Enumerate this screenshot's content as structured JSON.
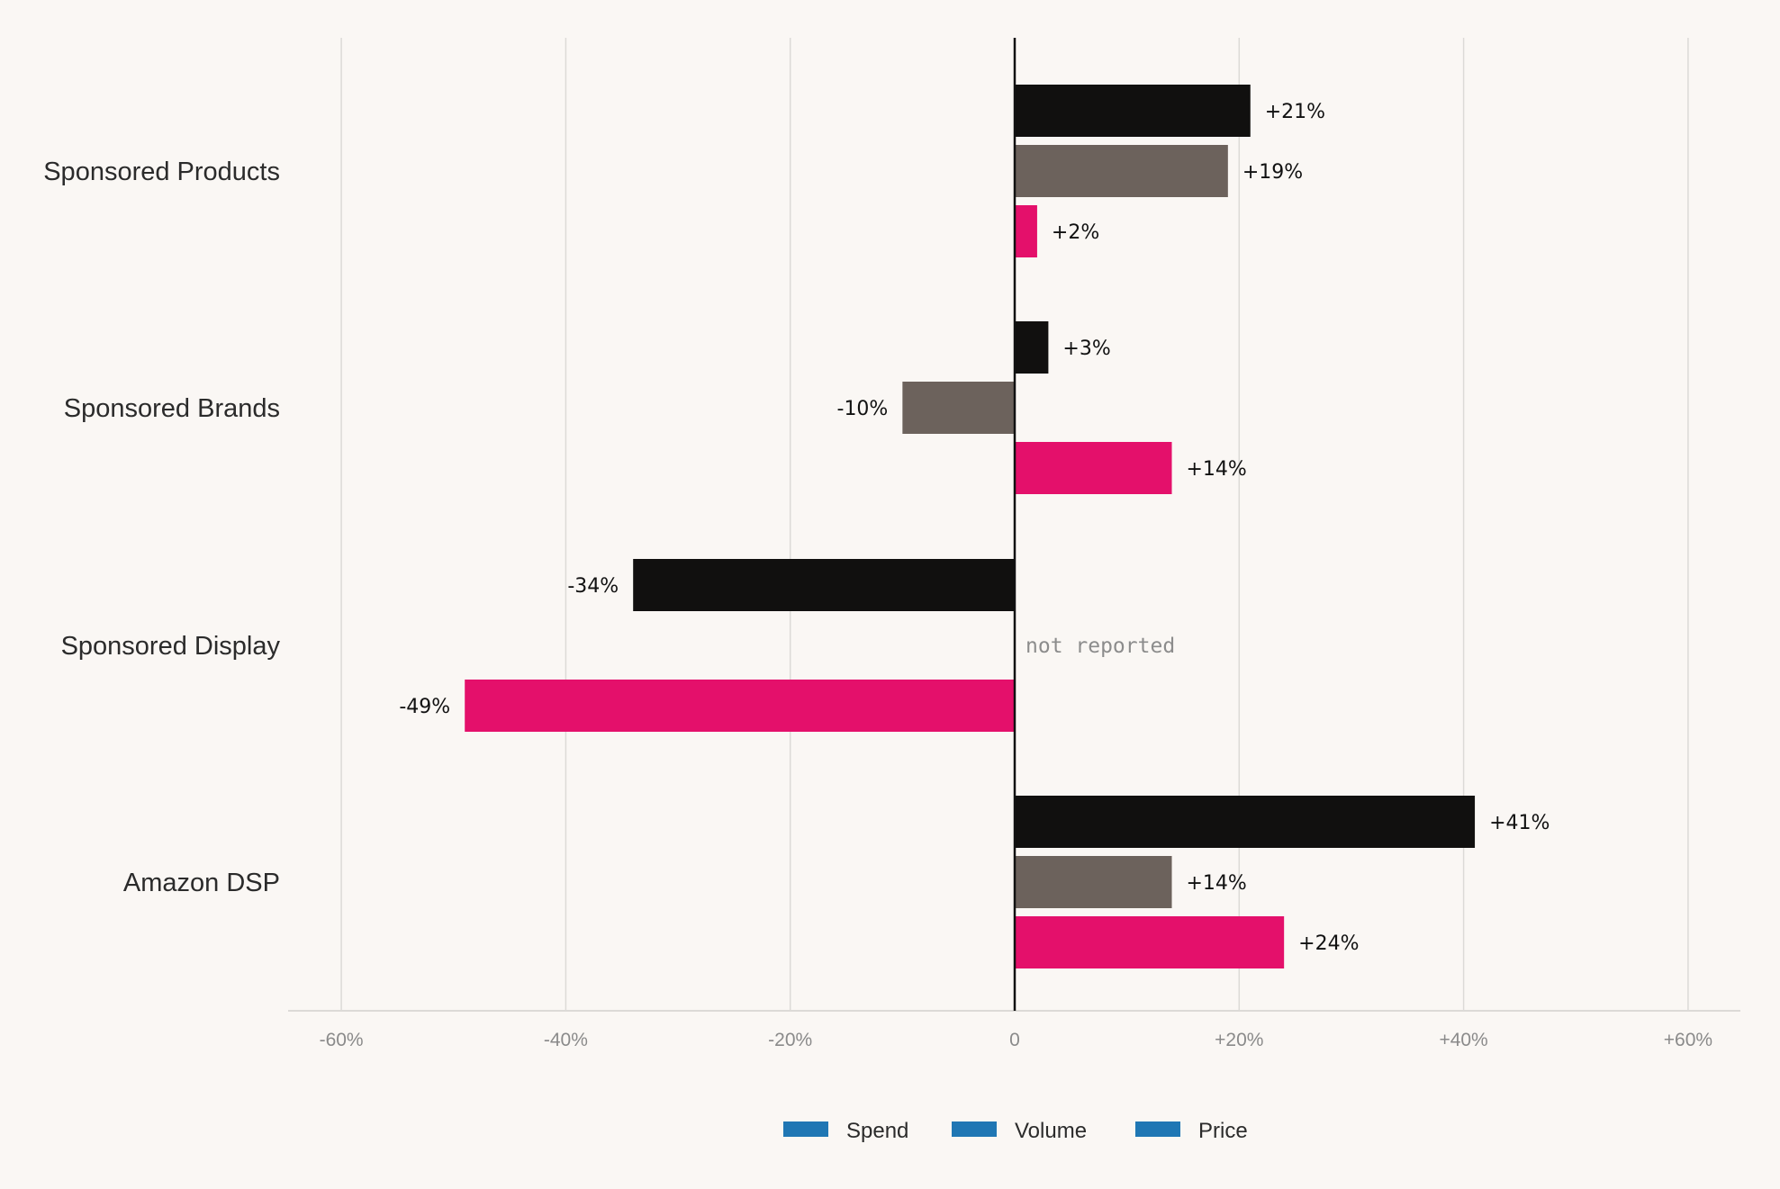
{
  "chart_data": {
    "type": "bar",
    "orientation": "horizontal",
    "title": "",
    "xlabel": "",
    "ylabel": "",
    "categories": [
      "Sponsored Products",
      "Sponsored Brands",
      "Sponsored Display",
      "Amazon DSP"
    ],
    "series": [
      {
        "name": "Spend",
        "color": "#11100f",
        "values": [
          21,
          3,
          -34,
          41
        ],
        "labels": [
          "+21%",
          "+3%",
          "-34%",
          "+41%"
        ]
      },
      {
        "name": "Volume",
        "color": "#6c625c",
        "values": [
          19,
          -10,
          null,
          14
        ],
        "labels": [
          "+19%",
          "-10%",
          "not reported",
          "+14%"
        ]
      },
      {
        "name": "Price",
        "color": "#e4106b",
        "values": [
          2,
          14,
          -49,
          24
        ],
        "labels": [
          "+2%",
          "+14%",
          "-49%",
          "+24%"
        ]
      }
    ],
    "xlim": [
      -65,
      65
    ],
    "xticks": [
      -60,
      -40,
      -20,
      0,
      20,
      40,
      60
    ],
    "xtick_labels": [
      "-60%",
      "-40%",
      "-20%",
      "0",
      "+20%",
      "+40%",
      "+60%"
    ],
    "grid": true,
    "legend": {
      "position": "bottom-center",
      "swatch_color": "#1f77b4",
      "entries": [
        "Spend",
        "Volume",
        "Price"
      ]
    },
    "colors": {
      "background": "#faf7f4",
      "grid": "#dcdad7",
      "zero_line": "#111111"
    }
  }
}
